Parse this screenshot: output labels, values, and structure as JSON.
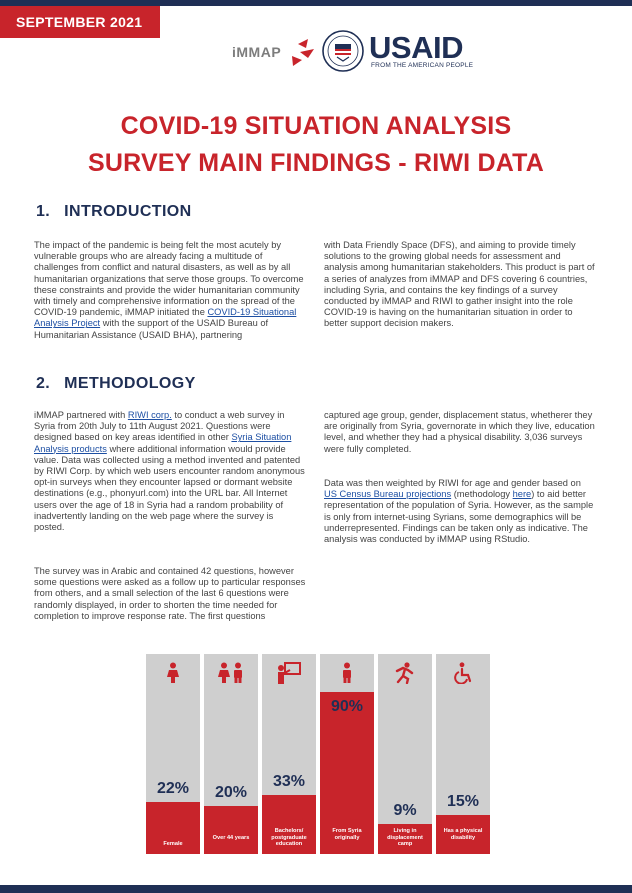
{
  "header": {
    "date_tag": "SEPTEMBER 2021",
    "immap_logo": "iMMAP",
    "usaid_word": "USAID",
    "usaid_tagline": "FROM THE AMERICAN PEOPLE"
  },
  "title": {
    "line1": "COVID-19 SITUATION ANALYSIS",
    "line2": "SURVEY MAIN FINDINGS - RIWI DATA"
  },
  "intro": {
    "number": "1.",
    "heading": "INTRODUCTION",
    "left_text_a": "The impact of the pandemic is being felt the most acutely by vulnerable groups who are already facing a multitude of challenges from conflict and natural disasters, as well as by all humanitarian organizations that serve those groups. To overcome these constraints and provide the wider humanitarian community with timely and comprehensive information on the spread of the COVID-19 pandemic, iMMAP initiated the ",
    "left_link": "COVID-19 Situational Analysis Project",
    "left_text_b": " with the support of the USAID Bureau of Humanitarian Assistance (USAID BHA), partnering",
    "right_text": "with Data Friendly Space (DFS), and aiming to provide timely solutions to the growing global needs for assessment and analysis among humanitarian stakeholders. This product is part of a series of analyzes from iMMAP and DFS covering 6 countries, including Syria, and contains the key findings of a survey conducted by iMMAP and RIWI to gather insight into the role COVID-19 is having on the humanitarian situation in order to better support decision makers."
  },
  "methodology": {
    "number": "2.",
    "heading": "METHODOLOGY",
    "p1_a": "iMMAP partnered with ",
    "p1_link1": "RIWI corp.",
    "p1_b": " to conduct a web survey in Syria from 20th July to 11th August 2021. Questions were designed based on key areas identified in other ",
    "p1_link2": "Syria Situation Analysis products",
    "p1_c": " where additional information would provide value. Data was collected using a method invented and patented by RIWI Corp. by which web users encounter random anonymous opt-in surveys when they encounter lapsed or dormant website destinations (e.g., phonyurl.com) into the URL bar. All Internet users over the age of 18 in Syria had a random probability of inadvertently landing on the web page where the survey is posted.",
    "p2": "The survey was in Arabic and contained 42 questions, however some questions were asked as a follow up to particular responses from others, and a small selection of the last 6 questions were randomly displayed, in order to shorten the time needed for completion to improve response rate. The first questions",
    "p3": "captured age group, gender, displacement status, whetherer they are originally from Syria, governorate in which they live, education level, and whether they had a physical disability. 3,036 surveys were fully completed.",
    "p4_a": "Data was then weighted by RIWI for age and gender based on ",
    "p4_link1": "US Census Bureau projections",
    "p4_b": " (methodology ",
    "p4_link2": "here",
    "p4_c": ") to aid better representation of the population of Syria. However, as the sample is only from internet-using Syrians, some demographics will be underrepresented. Findings can be taken only as indicative. The analysis was conducted by iMMAP using RStudio."
  },
  "chart_data": {
    "type": "bar",
    "categories": [
      "Female",
      "Over 44 years",
      "Bachelors/ postgraduate education",
      "From Syria originally",
      "Living in displacement camp",
      "Has a physical disability"
    ],
    "values": [
      22,
      20,
      33,
      90,
      9,
      15
    ],
    "value_labels": [
      "22%",
      "20%",
      "33%",
      "90%",
      "9%",
      "15%"
    ],
    "icons": [
      "female-icon",
      "people-icon",
      "teacher-icon",
      "person-icon",
      "running-icon",
      "wheelchair-icon"
    ],
    "ylim": [
      0,
      100
    ],
    "bar_color": "#c8242b",
    "background_color": "#cfcfcf",
    "value_color": "#1f2f55"
  },
  "colors": {
    "accent_red": "#c8242b",
    "navy": "#1f2f55",
    "link_blue": "#1d4fa3"
  }
}
